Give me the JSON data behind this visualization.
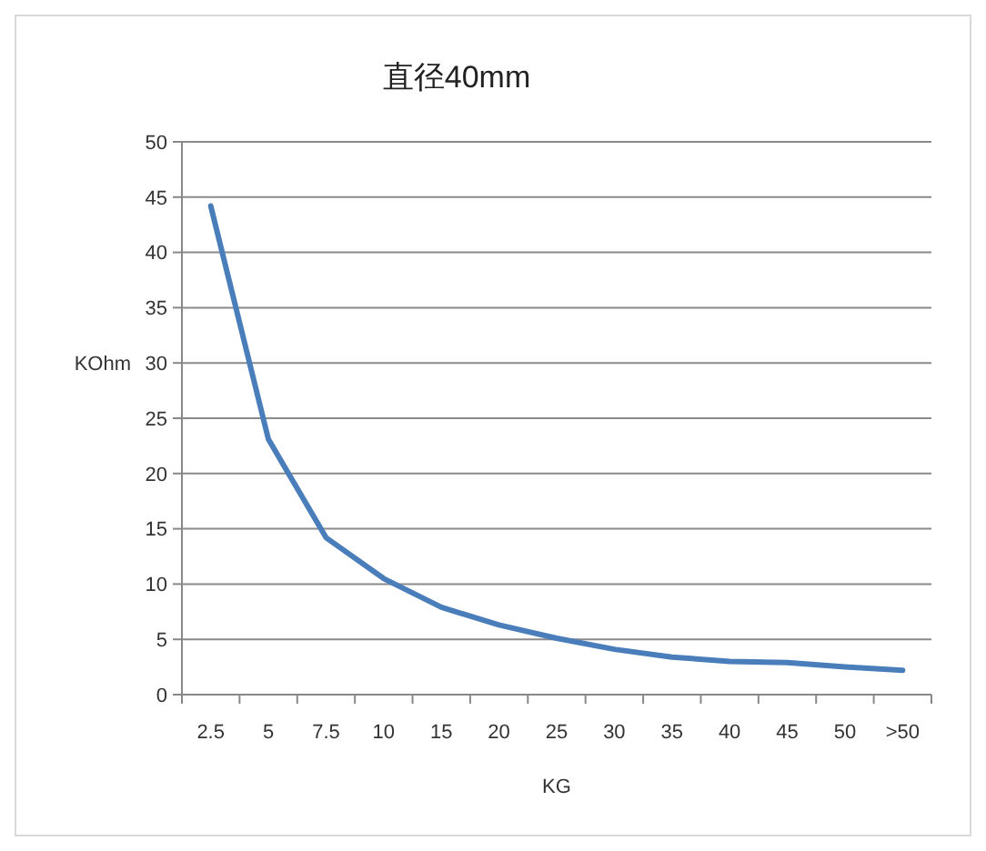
{
  "chart_data": {
    "type": "line",
    "title": "直径40mm",
    "xlabel": "KG",
    "ylabel": "KOhm",
    "categories": [
      "2.5",
      "5",
      "7.5",
      "10",
      "15",
      "20",
      "25",
      "30",
      "35",
      "40",
      "45",
      "50",
      ">50"
    ],
    "series": [
      {
        "color": "#4a7ebb",
        "values": [
          44.2,
          23.1,
          14.2,
          10.5,
          7.9,
          6.3,
          5.1,
          4.1,
          3.4,
          3.0,
          2.9,
          2.5,
          2.2
        ]
      }
    ],
    "ylim": [
      0,
      50
    ],
    "yticks": [
      0,
      5,
      10,
      15,
      20,
      25,
      30,
      35,
      40,
      45,
      50
    ],
    "grid": "y",
    "marker": "none",
    "line_style": "solid"
  }
}
